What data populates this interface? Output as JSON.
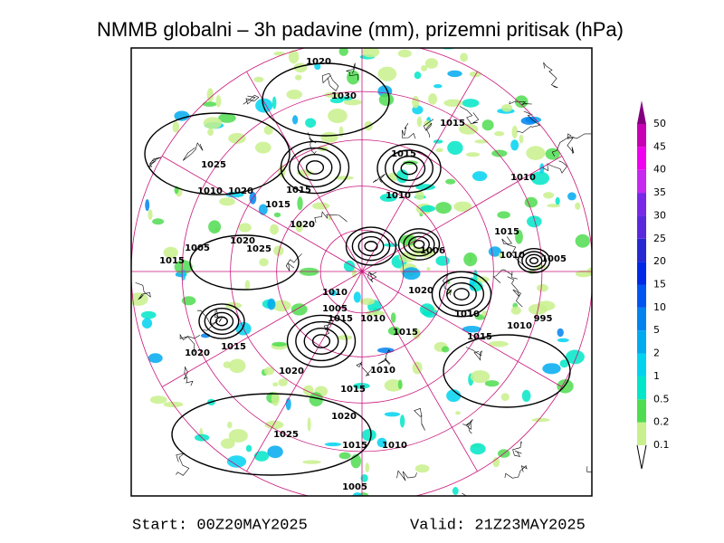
{
  "title": "NMMB globalni – 3h padavine (mm), prizemni pritisak (hPa)",
  "footer": {
    "start": "Start: 00Z20MAY2025",
    "valid": "Valid: 21Z23MAY2025"
  },
  "colorbar": {
    "levels": [
      {
        "label": "0.1",
        "color": "#c8f08c"
      },
      {
        "label": "0.2",
        "color": "#50dc50"
      },
      {
        "label": "0.5",
        "color": "#00e6c8"
      },
      {
        "label": "1",
        "color": "#00d2f0"
      },
      {
        "label": "2",
        "color": "#00aaf0"
      },
      {
        "label": "5",
        "color": "#0082f0"
      },
      {
        "label": "10",
        "color": "#0055f0"
      },
      {
        "label": "15",
        "color": "#0028e6"
      },
      {
        "label": "20",
        "color": "#2828d2"
      },
      {
        "label": "25",
        "color": "#5a28dc"
      },
      {
        "label": "30",
        "color": "#7828e6"
      },
      {
        "label": "35",
        "color": "#c828f0"
      },
      {
        "label": "40",
        "color": "#f000f0"
      },
      {
        "label": "45",
        "color": "#c800b4"
      },
      {
        "label": "50",
        "color": "#82007d"
      }
    ]
  },
  "isobar_labels": [
    "1020",
    "1030",
    "1015",
    "1025",
    "1015",
    "1010",
    "1010",
    "1020",
    "1015",
    "1010",
    "1015",
    "1020",
    "1015",
    "1005",
    "1020",
    "1025",
    "1006",
    "1010",
    "1005",
    "1015",
    "1010",
    "1020",
    "1005",
    "1015",
    "1010",
    "1010",
    "1010",
    "995",
    "1015",
    "1015",
    "1015",
    "1020",
    "1010",
    "1020",
    "1015",
    "1020",
    "1025",
    "1015",
    "1010",
    "1005"
  ]
}
